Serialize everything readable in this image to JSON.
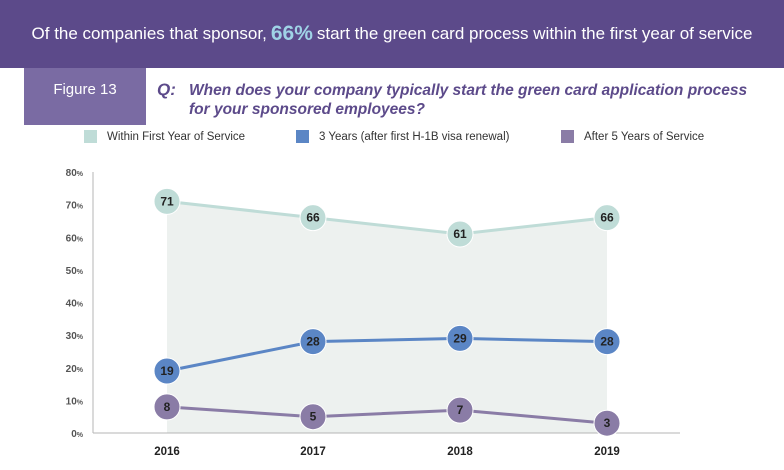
{
  "banner": {
    "prefix": "Of the companies that sponsor,",
    "highlight": "66%",
    "suffix": "start the green card process within the first year of service"
  },
  "figure_label": "Figure 13",
  "question": {
    "label": "Q:",
    "text": "When does your company typically start the green card application process for your sponsored employees?"
  },
  "colors": {
    "banner_bg": "#5c4a8a",
    "highlight": "#9fd3e6",
    "series_first_year": "#bfdcd7",
    "series_3_years": "#5b86c5",
    "series_5_years": "#8a7ca6",
    "area_fill": "#edf1ef"
  },
  "chart_data": {
    "type": "line",
    "categories": [
      "2016",
      "2017",
      "2018",
      "2019"
    ],
    "series": [
      {
        "name": "Within First Year of Service",
        "values": [
          71,
          66,
          61,
          66
        ]
      },
      {
        "name": "3 Years (after first H-1B visa renewal)",
        "values": [
          19,
          28,
          29,
          28
        ]
      },
      {
        "name": "After 5 Years of Service",
        "values": [
          8,
          5,
          7,
          3
        ]
      }
    ],
    "ylim": [
      0,
      80
    ],
    "yticks": [
      {
        "value": 0,
        "num": "0",
        "unit": "%"
      },
      {
        "value": 10,
        "num": "10",
        "unit": "%"
      },
      {
        "value": 20,
        "num": "20",
        "unit": "%"
      },
      {
        "value": 30,
        "num": "30",
        "unit": "%"
      },
      {
        "value": 40,
        "num": "40",
        "unit": "%"
      },
      {
        "value": 50,
        "num": "50",
        "unit": "%"
      },
      {
        "value": 60,
        "num": "60",
        "unit": "%"
      },
      {
        "value": 70,
        "num": "70",
        "unit": "%"
      },
      {
        "value": 80,
        "num": "80",
        "unit": "%"
      }
    ],
    "title": "When does your company typically start the green card application process for your sponsored employees?",
    "xlabel": "",
    "ylabel": "",
    "legend_position": "top"
  }
}
